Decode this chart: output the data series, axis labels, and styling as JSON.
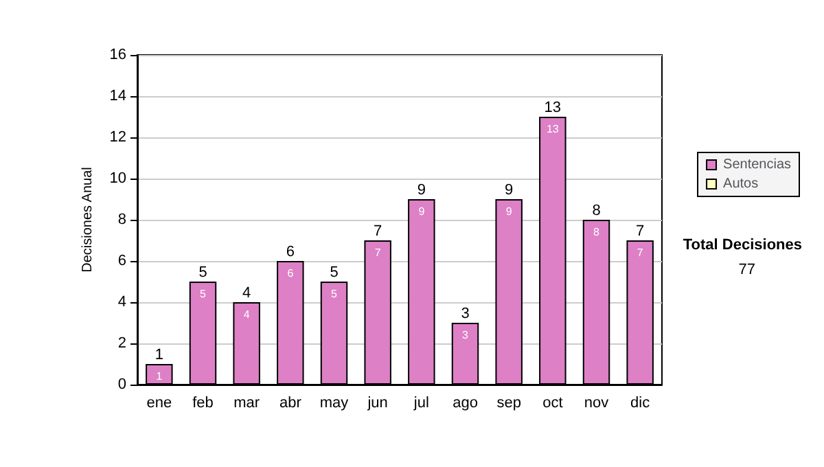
{
  "chart_data": {
    "type": "bar",
    "stacked": true,
    "ylabel": "Decisiones Anual",
    "categories": [
      "ene",
      "feb",
      "mar",
      "abr",
      "may",
      "jun",
      "jul",
      "ago",
      "sep",
      "oct",
      "nov",
      "dic"
    ],
    "series": [
      {
        "name": "Sentencias",
        "color": "#dd80c6",
        "values": [
          1,
          5,
          4,
          6,
          5,
          7,
          9,
          3,
          9,
          13,
          8,
          7
        ],
        "value_labels": [
          "1",
          "5",
          "4",
          "6",
          "5",
          "7",
          "9",
          "3",
          "9",
          "13",
          "8",
          "7"
        ]
      },
      {
        "name": "Autos",
        "color": "#ffffc0",
        "values": [
          0,
          0,
          0,
          0,
          0,
          0,
          0,
          0,
          0,
          0,
          0,
          0
        ]
      }
    ],
    "totals": [
      "1",
      "5",
      "4",
      "6",
      "5",
      "7",
      "9",
      "3",
      "9",
      "13",
      "8",
      "7"
    ],
    "ylim": [
      0,
      16
    ],
    "yticks": [
      0,
      2,
      4,
      6,
      8,
      10,
      12,
      14,
      16
    ],
    "grid": "y",
    "legend": "right",
    "annotations": [
      "Total Decisiones",
      "77"
    ]
  }
}
